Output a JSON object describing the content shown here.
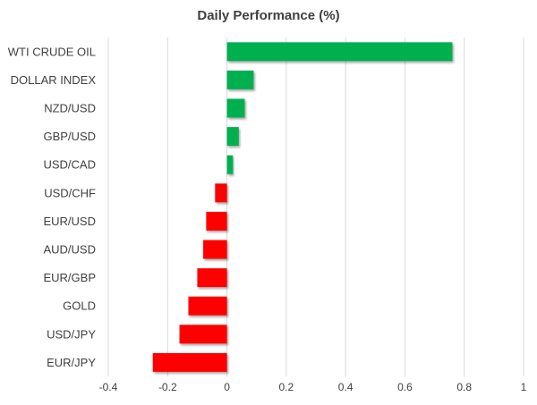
{
  "chart_data": {
    "type": "bar",
    "orientation": "horizontal",
    "title": "Daily Performance (%)",
    "categories": [
      "WTI CRUDE OIL",
      "DOLLAR INDEX",
      "NZD/USD",
      "GBP/USD",
      "USD/CAD",
      "USD/CHF",
      "EUR/USD",
      "AUD/USD",
      "EUR/GBP",
      "GOLD",
      "USD/JPY",
      "EUR/JPY"
    ],
    "values": [
      0.76,
      0.09,
      0.06,
      0.04,
      0.02,
      -0.04,
      -0.07,
      -0.08,
      -0.1,
      -0.13,
      -0.16,
      -0.25
    ],
    "xlim": [
      -0.4,
      1
    ],
    "x_ticks": [
      "-0.4",
      "-0.2",
      "0",
      "0.2",
      "0.4",
      "0.6",
      "0.8",
      "1"
    ],
    "grid": true,
    "legend": "none",
    "colors": {
      "positive": "#00b050",
      "negative": "#ff0000",
      "grid": "#d9d9d9",
      "text": "#404040"
    }
  }
}
